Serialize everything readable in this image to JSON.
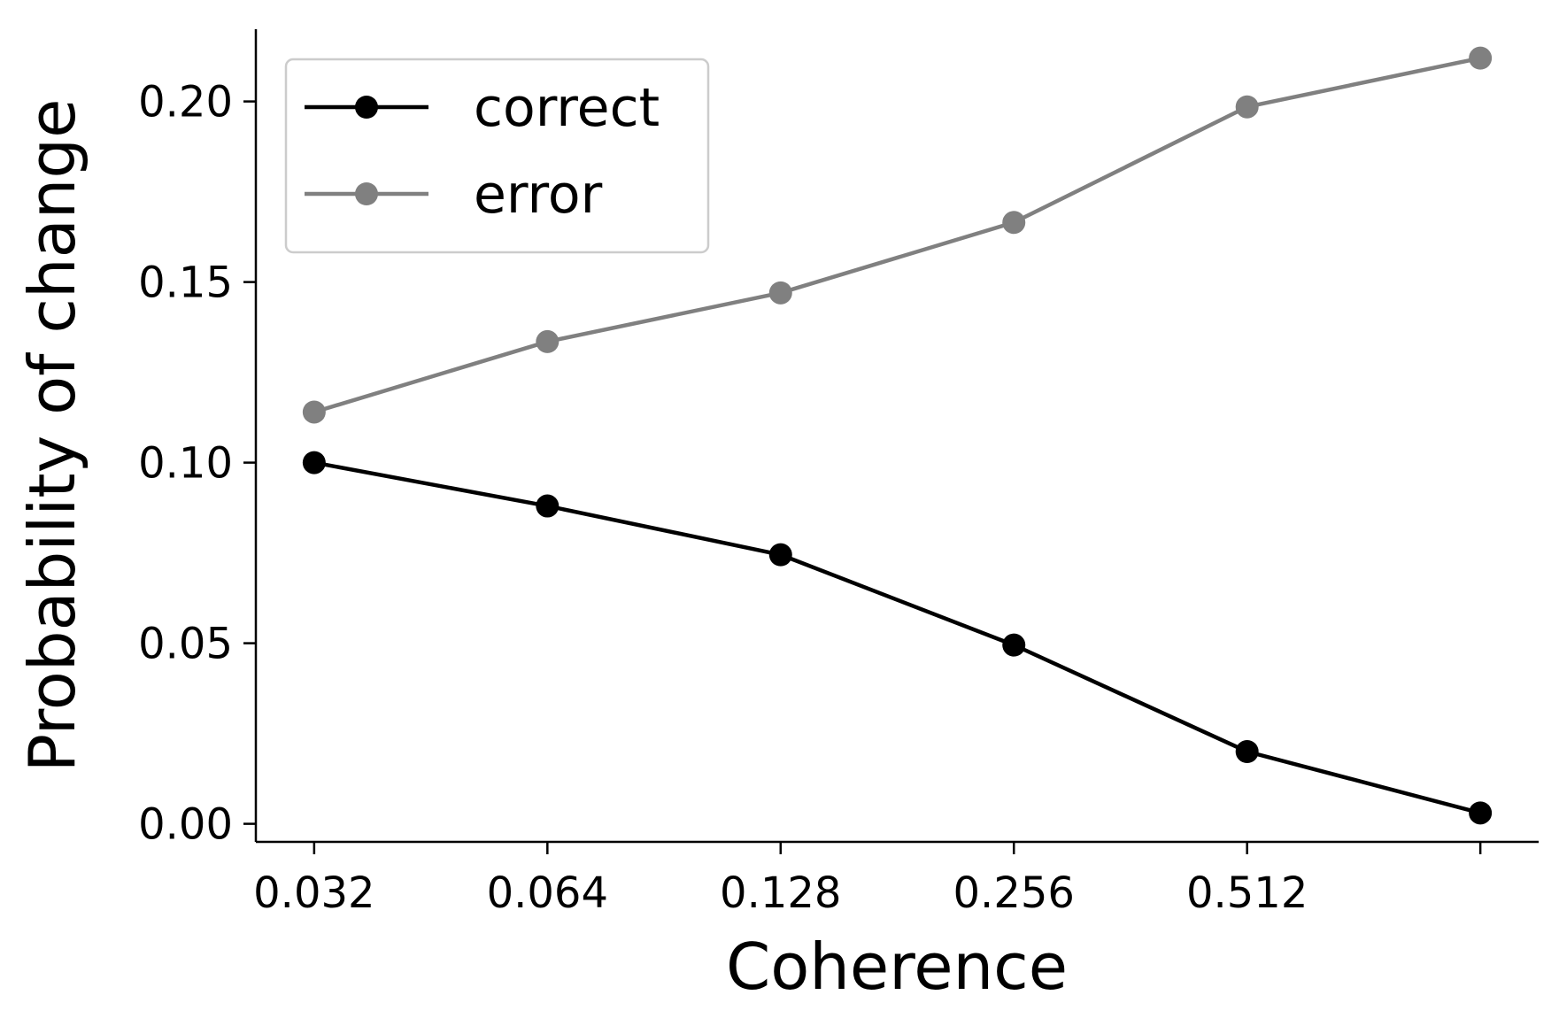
{
  "chart_data": {
    "type": "line",
    "title": "",
    "xlabel": "Coherence",
    "ylabel": "Probability of change",
    "x_positions": [
      0,
      1,
      2,
      3,
      4,
      5
    ],
    "x_tick_labels": [
      "0.032",
      "0.064",
      "0.128",
      "0.256",
      "0.512",
      ""
    ],
    "xlim": [
      -0.25,
      5.25
    ],
    "ylim": [
      -0.005,
      0.22
    ],
    "y_ticks": [
      0.0,
      0.05,
      0.1,
      0.15,
      0.2
    ],
    "y_tick_labels": [
      "0.00",
      "0.05",
      "0.10",
      "0.15",
      "0.20"
    ],
    "grid": false,
    "legend": {
      "position": "top-left"
    },
    "series": [
      {
        "name": "correct",
        "color": "#000000",
        "values": [
          0.1,
          0.088,
          0.0745,
          0.0495,
          0.02,
          0.003
        ]
      },
      {
        "name": "error",
        "color": "#808080",
        "values": [
          0.114,
          0.1335,
          0.147,
          0.1665,
          0.1985,
          0.212
        ]
      }
    ]
  }
}
